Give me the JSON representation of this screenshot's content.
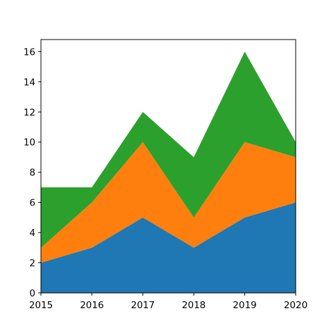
{
  "chart_data": {
    "type": "area",
    "stacked": true,
    "x": [
      2015,
      2016,
      2017,
      2018,
      2019,
      2020
    ],
    "xticks": [
      "2015",
      "2016",
      "2017",
      "2018",
      "2019",
      "2020"
    ],
    "yticks": [
      "0",
      "2",
      "4",
      "6",
      "8",
      "10",
      "12",
      "14",
      "16"
    ],
    "xlim": [
      2015,
      2020
    ],
    "ylim": [
      0,
      16.8
    ],
    "grid": false,
    "series": [
      {
        "values": [
          2,
          3,
          5,
          3,
          5,
          6
        ],
        "color": "#1f77b4"
      },
      {
        "values": [
          1,
          3,
          5,
          2,
          5,
          3
        ],
        "color": "#ff7f0e"
      },
      {
        "values": [
          4,
          1,
          2,
          4,
          6,
          1
        ],
        "color": "#2ca02c"
      }
    ]
  }
}
